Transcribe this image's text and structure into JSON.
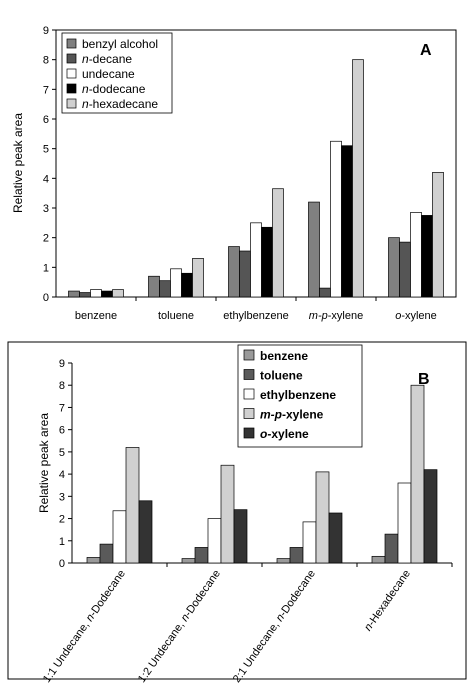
{
  "chart_data": [
    {
      "type": "bar",
      "panel_label": "A",
      "ylabel": "Relative peak area",
      "ylim": [
        0,
        9
      ],
      "yticks": [
        "0",
        "1",
        "2",
        "3",
        "4",
        "5",
        "6",
        "7",
        "8",
        "9"
      ],
      "categories": [
        "benzene",
        "toluene",
        "ethylbenzene",
        "m-p-xylene",
        "o-xylene"
      ],
      "legend_position": "top-left",
      "series": [
        {
          "name": "benzyl alcohol",
          "color": "#808080",
          "values": [
            0.2,
            0.7,
            1.7,
            3.2,
            2.0
          ]
        },
        {
          "name": "n-decane",
          "color": "#555555",
          "values": [
            0.15,
            0.55,
            1.55,
            0.3,
            1.85
          ]
        },
        {
          "name": "undecane",
          "color": "#ffffff",
          "values": [
            0.25,
            0.95,
            2.5,
            5.25,
            2.85
          ]
        },
        {
          "name": "n-dodecane",
          "color": "#000000",
          "values": [
            0.2,
            0.8,
            2.35,
            5.1,
            2.75
          ]
        },
        {
          "name": "n-hexadecane",
          "color": "#d0d0d0",
          "values": [
            0.25,
            1.3,
            3.65,
            8.0,
            4.2
          ]
        }
      ]
    },
    {
      "type": "bar",
      "panel_label": "B",
      "ylabel": "Relative peak area",
      "ylim": [
        0,
        9
      ],
      "yticks": [
        "0",
        "1",
        "2",
        "3",
        "4",
        "5",
        "6",
        "7",
        "8",
        "9"
      ],
      "categories": [
        "1:1 Undecane, n-Dodecane",
        "1:2 Undecane, n-Dodecane",
        "2:1 Undecane, n-Dodecane",
        "n-Hexadecane"
      ],
      "legend_position": "top-center",
      "series": [
        {
          "name": "benzene",
          "color": "#9a9a9a",
          "values": [
            0.25,
            0.2,
            0.2,
            0.3
          ]
        },
        {
          "name": "toluene",
          "color": "#5a5a5a",
          "values": [
            0.85,
            0.7,
            0.7,
            1.3
          ]
        },
        {
          "name": "ethylbenzene",
          "color": "#ffffff",
          "values": [
            2.35,
            2.0,
            1.85,
            3.6
          ]
        },
        {
          "name": "m-p-xylene",
          "color": "#d0d0d0",
          "values": [
            5.2,
            4.4,
            4.1,
            8.0
          ]
        },
        {
          "name": "o-xylene",
          "color": "#333333",
          "values": [
            2.8,
            2.4,
            2.25,
            4.2
          ]
        }
      ]
    }
  ]
}
